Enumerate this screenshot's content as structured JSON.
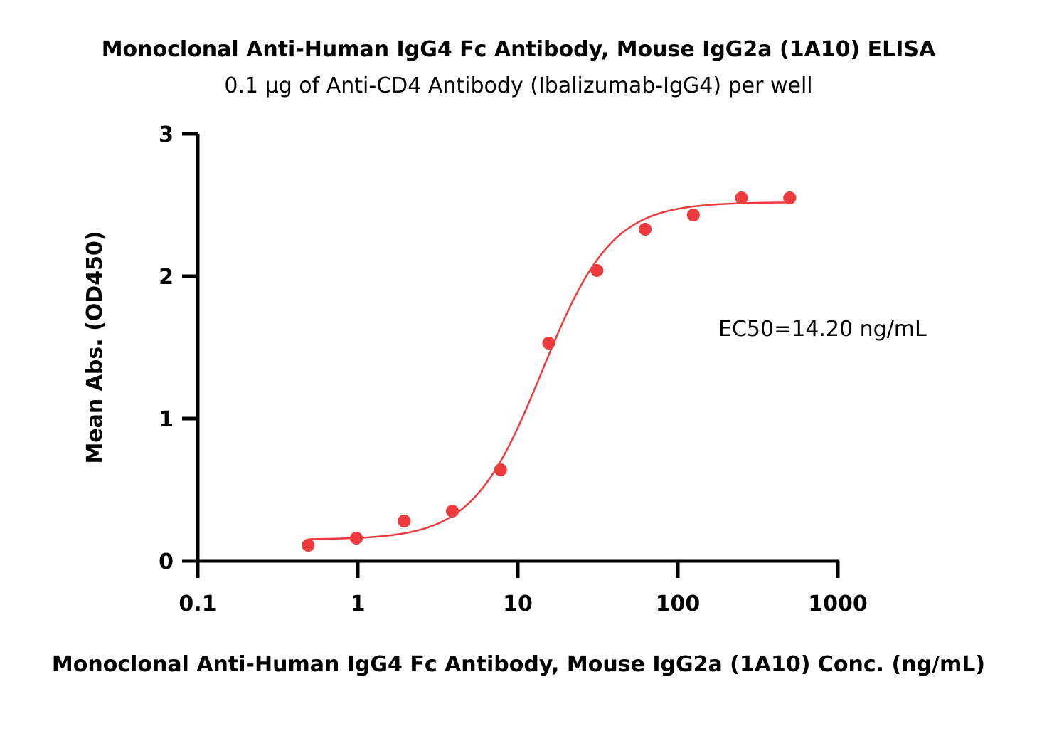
{
  "chart_data": {
    "type": "scatter",
    "title": "Monoclonal Anti-Human IgG4 Fc Antibody, Mouse IgG2a (1A10) ELISA",
    "subtitle": "0.1 μg of Anti-CD4 Antibody (Ibalizumab-IgG4) per well",
    "xlabel": "Monoclonal Anti-Human IgG4 Fc Antibody, Mouse IgG2a (1A10) Conc. (ng/mL)",
    "ylabel": "Mean Abs. (OD450)",
    "xscale": "log",
    "xlim": [
      0.1,
      1000
    ],
    "ylim": [
      0,
      3
    ],
    "xticks": [
      "0.1",
      "1",
      "10",
      "100",
      "1000"
    ],
    "yticks": [
      "0",
      "1",
      "2",
      "3"
    ],
    "points": {
      "x": [
        0.49,
        0.98,
        1.95,
        3.9,
        7.8,
        15.6,
        31.25,
        62.5,
        125,
        250,
        500
      ],
      "y": [
        0.11,
        0.16,
        0.28,
        0.35,
        0.64,
        1.53,
        2.04,
        2.33,
        2.43,
        2.55,
        2.55
      ]
    },
    "fit": {
      "model": "4PL",
      "bottom": 0.15,
      "top": 2.52,
      "ec50": 14.2,
      "hill": 2.0
    },
    "annotation": "EC50=14.20 ng/mL",
    "color": "#ef3b3e",
    "grid": false,
    "legend": "none"
  }
}
